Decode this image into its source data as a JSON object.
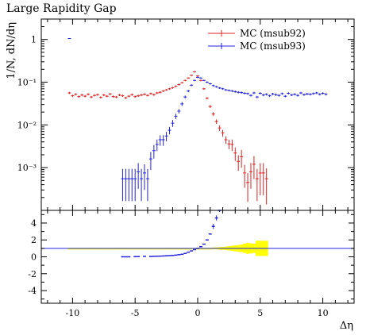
{
  "chart_data": {
    "type": "scatter",
    "title": "Large Rapidity Gap",
    "xlabel": "Δη",
    "ylabel": "1/N, dN/dη",
    "log_y_main": true,
    "main_ylim": [
      0.0001,
      3
    ],
    "ratio_ylim": [
      -5.5,
      5.5
    ],
    "xlim": [
      -12.5,
      12.5
    ],
    "x_ticks": [
      -10,
      -5,
      0,
      5,
      10
    ],
    "main_y_ticks": [
      {
        "value": 1,
        "label": "1"
      },
      {
        "value": 0.1,
        "label": "10⁻¹"
      },
      {
        "value": 0.01,
        "label": "10⁻²"
      },
      {
        "value": 0.001,
        "label": "10⁻³"
      }
    ],
    "ratio_y_ticks": [
      4,
      2,
      0,
      -2,
      -4
    ],
    "legend_position": "top-right",
    "series": [
      {
        "name": "MC (msub92)",
        "color": "#e02020",
        "x": [
          -10.25,
          -10.0,
          -9.75,
          -9.5,
          -9.25,
          -9.0,
          -8.75,
          -8.5,
          -8.25,
          -8.0,
          -7.75,
          -7.5,
          -7.25,
          -7.0,
          -6.75,
          -6.5,
          -6.25,
          -6.0,
          -5.75,
          -5.5,
          -5.25,
          -5.0,
          -4.75,
          -4.5,
          -4.25,
          -4.0,
          -3.75,
          -3.5,
          -3.25,
          -3.0,
          -2.75,
          -2.5,
          -2.25,
          -2.0,
          -1.75,
          -1.5,
          -1.25,
          -1.0,
          -0.75,
          -0.5,
          -0.25,
          0.0,
          0.25,
          0.5,
          0.75,
          1.0,
          1.25,
          1.5,
          1.75,
          2.0,
          2.25,
          2.5,
          2.75,
          3.0,
          3.25,
          3.5,
          3.75,
          4.0,
          4.25,
          4.5,
          4.75,
          5.0,
          5.25,
          5.5
        ],
        "y": [
          0.056,
          0.048,
          0.052,
          0.046,
          0.05,
          0.047,
          0.052,
          0.045,
          0.049,
          0.051,
          0.044,
          0.05,
          0.047,
          0.053,
          0.046,
          0.045,
          0.05,
          0.048,
          0.043,
          0.047,
          0.051,
          0.046,
          0.048,
          0.05,
          0.052,
          0.049,
          0.054,
          0.051,
          0.056,
          0.058,
          0.062,
          0.066,
          0.07,
          0.074,
          0.08,
          0.088,
          0.097,
          0.11,
          0.125,
          0.145,
          0.175,
          0.14,
          0.11,
          0.07,
          0.042,
          0.027,
          0.018,
          0.012,
          0.0085,
          0.0065,
          0.0045,
          0.0036,
          0.0035,
          0.0022,
          0.0014,
          0.0018,
          0.00075,
          0.00045,
          0.0008,
          0.0012,
          0.00055,
          0.00075,
          0.00075,
          0.00055
        ],
        "err_rel": [
          0.06,
          0.06,
          0.06,
          0.06,
          0.06,
          0.06,
          0.06,
          0.06,
          0.06,
          0.06,
          0.06,
          0.06,
          0.06,
          0.06,
          0.06,
          0.06,
          0.06,
          0.06,
          0.06,
          0.06,
          0.06,
          0.06,
          0.06,
          0.06,
          0.06,
          0.06,
          0.06,
          0.06,
          0.06,
          0.06,
          0.05,
          0.05,
          0.05,
          0.05,
          0.05,
          0.05,
          0.04,
          0.04,
          0.04,
          0.04,
          0.04,
          0.04,
          0.04,
          0.05,
          0.06,
          0.08,
          0.1,
          0.12,
          0.15,
          0.18,
          0.2,
          0.25,
          0.3,
          0.35,
          0.4,
          0.45,
          0.55,
          0.65,
          0.6,
          0.55,
          0.7,
          0.7,
          0.7,
          0.75
        ]
      },
      {
        "name": "MC (msub93)",
        "color": "#2020e0",
        "x": [
          -10.25,
          -6.0,
          -5.75,
          -5.5,
          -5.25,
          -5.0,
          -4.75,
          -4.5,
          -4.25,
          -4.0,
          -3.75,
          -3.5,
          -3.25,
          -3.0,
          -2.75,
          -2.5,
          -2.25,
          -2.0,
          -1.75,
          -1.5,
          -1.25,
          -1.0,
          -0.75,
          -0.5,
          -0.25,
          0.0,
          0.25,
          0.5,
          0.75,
          1.0,
          1.25,
          1.5,
          1.75,
          2.0,
          2.25,
          2.5,
          2.75,
          3.0,
          3.25,
          3.5,
          3.75,
          4.0,
          4.25,
          4.5,
          4.75,
          5.0,
          5.25,
          5.5,
          5.75,
          6.0,
          6.25,
          6.5,
          6.75,
          7.0,
          7.25,
          7.5,
          7.75,
          8.0,
          8.25,
          8.5,
          8.75,
          9.0,
          9.25,
          9.5,
          9.75,
          10.0,
          10.25
        ],
        "y": [
          1.05,
          0.00055,
          0.00055,
          0.00055,
          0.00055,
          0.00055,
          0.0008,
          0.00055,
          0.00075,
          0.00055,
          0.0016,
          0.0025,
          0.0035,
          0.0045,
          0.0045,
          0.0055,
          0.0075,
          0.011,
          0.016,
          0.021,
          0.031,
          0.045,
          0.062,
          0.085,
          0.11,
          0.13,
          0.125,
          0.11,
          0.1,
          0.092,
          0.083,
          0.078,
          0.073,
          0.07,
          0.066,
          0.064,
          0.062,
          0.06,
          0.058,
          0.057,
          0.055,
          0.054,
          0.049,
          0.056,
          0.045,
          0.055,
          0.05,
          0.052,
          0.048,
          0.053,
          0.051,
          0.049,
          0.054,
          0.047,
          0.055,
          0.05,
          0.052,
          0.049,
          0.056,
          0.051,
          0.053,
          0.052,
          0.054,
          0.056,
          0.052,
          0.055,
          0.052
        ],
        "err_rel": [
          0.02,
          0.7,
          0.7,
          0.7,
          0.7,
          0.7,
          0.6,
          0.7,
          0.6,
          0.7,
          0.45,
          0.35,
          0.3,
          0.28,
          0.28,
          0.25,
          0.2,
          0.18,
          0.14,
          0.12,
          0.1,
          0.08,
          0.06,
          0.05,
          0.04,
          0.04,
          0.04,
          0.04,
          0.05,
          0.05,
          0.05,
          0.05,
          0.05,
          0.05,
          0.05,
          0.05,
          0.05,
          0.06,
          0.06,
          0.06,
          0.06,
          0.06,
          0.06,
          0.06,
          0.06,
          0.06,
          0.06,
          0.06,
          0.06,
          0.06,
          0.06,
          0.06,
          0.06,
          0.06,
          0.06,
          0.06,
          0.06,
          0.06,
          0.06,
          0.06,
          0.06,
          0.06,
          0.06,
          0.06,
          0.06,
          0.06,
          0.06
        ]
      }
    ],
    "ratio": {
      "reference_color": "#ffff00",
      "reference_x": [
        -10.25,
        -10.0,
        -9.75,
        -9.5,
        -9.25,
        -9.0,
        -8.75,
        -8.5,
        -8.25,
        -8.0,
        -7.75,
        -7.5,
        -7.25,
        -7.0,
        -6.75,
        -6.5,
        -6.25,
        -6.0,
        -5.75,
        -5.5,
        -5.25,
        -5.0,
        -4.75,
        -4.5,
        -4.25,
        -4.0,
        -3.75,
        -3.5,
        -3.25,
        -3.0,
        -2.75,
        -2.5,
        -2.25,
        -2.0,
        -1.75,
        -1.5,
        -1.25,
        -1.0,
        -0.75,
        -0.5,
        -0.25,
        0.0,
        0.25,
        0.5,
        0.75,
        1.0,
        1.25,
        1.5,
        1.75,
        2.0,
        2.25,
        2.5,
        2.75,
        3.0,
        3.25,
        3.5,
        3.75,
        4.0,
        4.25,
        4.5,
        4.75,
        5.0,
        5.25,
        5.5
      ],
      "reference_halfwidth": [
        0.05,
        0.05,
        0.05,
        0.05,
        0.05,
        0.05,
        0.05,
        0.05,
        0.05,
        0.05,
        0.05,
        0.05,
        0.05,
        0.05,
        0.05,
        0.05,
        0.05,
        0.05,
        0.05,
        0.05,
        0.05,
        0.05,
        0.05,
        0.05,
        0.05,
        0.05,
        0.05,
        0.05,
        0.05,
        0.05,
        0.05,
        0.05,
        0.05,
        0.05,
        0.05,
        0.05,
        0.05,
        0.05,
        0.05,
        0.05,
        0.05,
        0.05,
        0.05,
        0.05,
        0.05,
        0.05,
        0.1,
        0.12,
        0.15,
        0.18,
        0.2,
        0.25,
        0.3,
        0.35,
        0.4,
        0.45,
        0.55,
        0.65,
        0.6,
        0.55,
        0.9,
        0.9,
        0.9,
        0.9
      ],
      "ratio_x": [
        -6.0,
        -5.75,
        -5.5,
        -5.0,
        -4.75,
        -4.25,
        -3.75,
        -3.5,
        -3.25,
        -3.0,
        -2.75,
        -2.5,
        -2.25,
        -2.0,
        -1.75,
        -1.5,
        -1.25,
        -1.0,
        -0.75,
        -0.5,
        -0.25,
        0.0,
        0.25,
        0.5,
        0.75,
        1.0,
        1.25,
        1.5,
        1.75
      ],
      "ratio_y": [
        0.0,
        0.0,
        0.0,
        0.02,
        0.03,
        0.05,
        0.04,
        0.06,
        0.07,
        0.08,
        0.1,
        0.12,
        0.14,
        0.16,
        0.2,
        0.25,
        0.3,
        0.4,
        0.55,
        0.7,
        0.85,
        1.0,
        1.2,
        1.5,
        2.0,
        2.7,
        3.6,
        4.6,
        5.6
      ],
      "blue_line_value": 1.0
    }
  }
}
